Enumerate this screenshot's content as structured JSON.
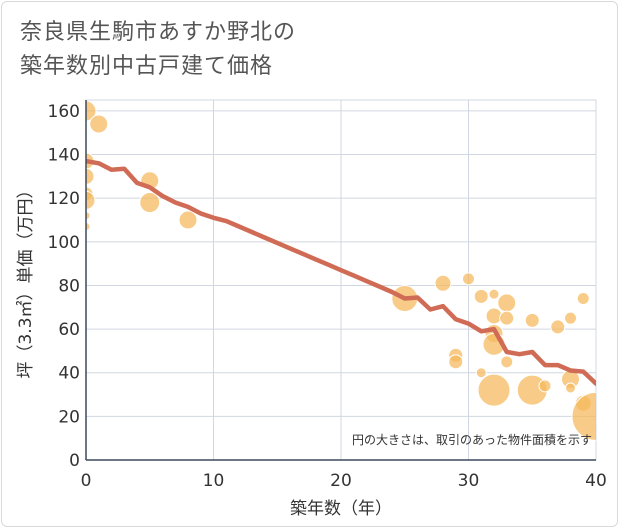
{
  "title_lines": [
    "奈良県生駒市あすか野北の",
    "築年数別中古戸建て価格"
  ],
  "colors": {
    "bubble": "#f5b85a",
    "trend": "#d06b56",
    "grid": "#d0d7e0",
    "axis": "#3d4a5c"
  },
  "chart_data": {
    "type": "scatter",
    "title": "奈良県生駒市あすか野北の築年数別中古戸建て価格",
    "xlabel": "築年数（年）",
    "ylabel": "坪（3.3㎡）単価（万円）",
    "xlim": [
      0,
      40
    ],
    "ylim": [
      0,
      165
    ],
    "xticks": [
      0,
      10,
      20,
      30,
      40
    ],
    "yticks": [
      0,
      20,
      40,
      60,
      80,
      100,
      120,
      140,
      160
    ],
    "grid": true,
    "note": "円の大きさは、取引のあった物件面積を示す",
    "points": [
      {
        "x": 0,
        "y": 160,
        "s": 10
      },
      {
        "x": 0,
        "y": 137,
        "s": 8
      },
      {
        "x": 0,
        "y": 130,
        "s": 8
      },
      {
        "x": 0,
        "y": 122,
        "s": 7
      },
      {
        "x": 0,
        "y": 119,
        "s": 9
      },
      {
        "x": 0,
        "y": 112,
        "s": 4
      },
      {
        "x": 0,
        "y": 107,
        "s": 4
      },
      {
        "x": 1,
        "y": 154,
        "s": 9
      },
      {
        "x": 5,
        "y": 128,
        "s": 9
      },
      {
        "x": 5,
        "y": 118,
        "s": 10
      },
      {
        "x": 8,
        "y": 110,
        "s": 9
      },
      {
        "x": 25,
        "y": 74,
        "s": 13
      },
      {
        "x": 28,
        "y": 81,
        "s": 8
      },
      {
        "x": 29,
        "y": 48,
        "s": 7
      },
      {
        "x": 29,
        "y": 45,
        "s": 7
      },
      {
        "x": 30,
        "y": 83,
        "s": 6
      },
      {
        "x": 31,
        "y": 75,
        "s": 7
      },
      {
        "x": 31,
        "y": 40,
        "s": 5
      },
      {
        "x": 32,
        "y": 76,
        "s": 5
      },
      {
        "x": 32,
        "y": 66,
        "s": 8
      },
      {
        "x": 32,
        "y": 58,
        "s": 9
      },
      {
        "x": 32,
        "y": 53,
        "s": 11
      },
      {
        "x": 32,
        "y": 32,
        "s": 16
      },
      {
        "x": 33,
        "y": 72,
        "s": 9
      },
      {
        "x": 33,
        "y": 65,
        "s": 7
      },
      {
        "x": 33,
        "y": 45,
        "s": 6
      },
      {
        "x": 35,
        "y": 64,
        "s": 7
      },
      {
        "x": 35,
        "y": 32,
        "s": 15
      },
      {
        "x": 36,
        "y": 34,
        "s": 6
      },
      {
        "x": 37,
        "y": 61,
        "s": 7
      },
      {
        "x": 38,
        "y": 65,
        "s": 6
      },
      {
        "x": 38,
        "y": 37,
        "s": 9
      },
      {
        "x": 38,
        "y": 33,
        "s": 5
      },
      {
        "x": 39,
        "y": 74,
        "s": 6
      },
      {
        "x": 39,
        "y": 26,
        "s": 8
      },
      {
        "x": 40,
        "y": 20,
        "s": 24
      }
    ],
    "trend": [
      {
        "x": 0,
        "y": 137
      },
      {
        "x": 1,
        "y": 136
      },
      {
        "x": 2,
        "y": 133
      },
      {
        "x": 3,
        "y": 133.5
      },
      {
        "x": 4,
        "y": 127
      },
      {
        "x": 5,
        "y": 125
      },
      {
        "x": 6,
        "y": 121
      },
      {
        "x": 7,
        "y": 118
      },
      {
        "x": 8,
        "y": 116
      },
      {
        "x": 9,
        "y": 113
      },
      {
        "x": 10,
        "y": 111
      },
      {
        "x": 11,
        "y": 109.5
      },
      {
        "x": 12,
        "y": 107
      },
      {
        "x": 13,
        "y": 104.5
      },
      {
        "x": 14,
        "y": 102
      },
      {
        "x": 15,
        "y": 99.5
      },
      {
        "x": 16,
        "y": 97
      },
      {
        "x": 17,
        "y": 94.5
      },
      {
        "x": 18,
        "y": 92
      },
      {
        "x": 19,
        "y": 89.5
      },
      {
        "x": 20,
        "y": 87
      },
      {
        "x": 21,
        "y": 84.5
      },
      {
        "x": 22,
        "y": 82
      },
      {
        "x": 23,
        "y": 79.5
      },
      {
        "x": 24,
        "y": 77
      },
      {
        "x": 25,
        "y": 74
      },
      {
        "x": 26,
        "y": 74.5
      },
      {
        "x": 27,
        "y": 69
      },
      {
        "x": 28,
        "y": 70.5
      },
      {
        "x": 29,
        "y": 64.5
      },
      {
        "x": 30,
        "y": 62.5
      },
      {
        "x": 31,
        "y": 59
      },
      {
        "x": 32,
        "y": 60
      },
      {
        "x": 33,
        "y": 49.5
      },
      {
        "x": 34,
        "y": 48.5
      },
      {
        "x": 35,
        "y": 49.5
      },
      {
        "x": 36,
        "y": 43.5
      },
      {
        "x": 37,
        "y": 43.5
      },
      {
        "x": 38,
        "y": 41
      },
      {
        "x": 39,
        "y": 40.5
      },
      {
        "x": 40,
        "y": 35
      }
    ]
  }
}
